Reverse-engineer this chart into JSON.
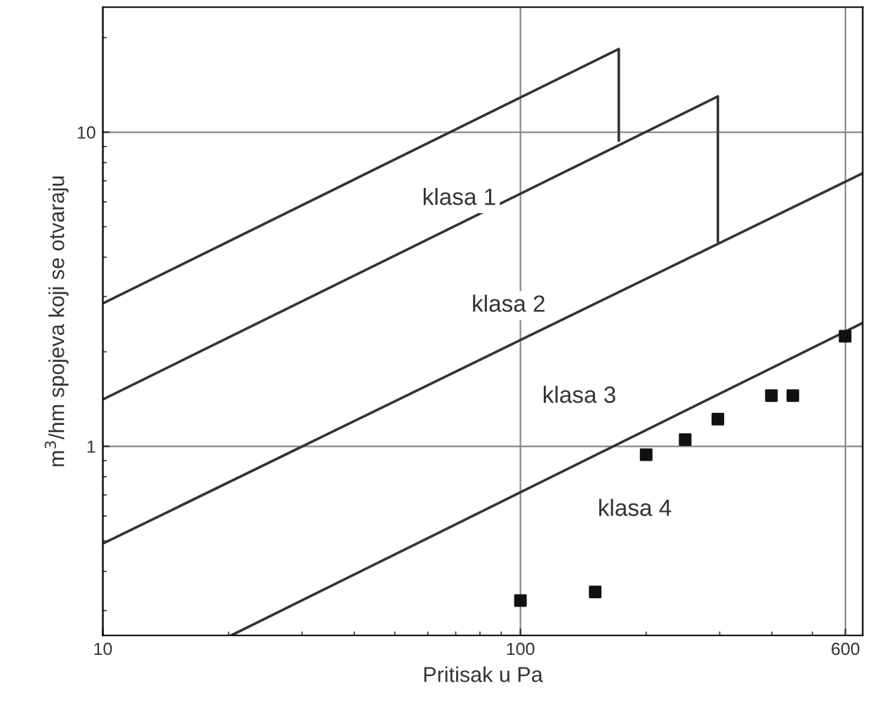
{
  "chart_data": {
    "type": "line",
    "xlabel": "Pritisak u Pa",
    "ylabel": "m$^{3}$/hm spojeva koji se otvaraju",
    "log": "xy",
    "xlim": [
      10,
      660
    ],
    "ylim": [
      0.25,
      25
    ],
    "xticks": [
      10,
      100,
      600
    ],
    "yticks": [
      1,
      10
    ],
    "grid": true,
    "legend": false,
    "series": [
      {
        "color": "#333333",
        "marker": "none",
        "x": [
          10,
          172,
          172
        ],
        "values": [
          2.85,
          18.4,
          9.4
        ]
      },
      {
        "color": "#333333",
        "marker": "none",
        "x": [
          10,
          297,
          297
        ],
        "values": [
          1.41,
          13.0,
          4.5
        ]
      },
      {
        "color": "#333333",
        "marker": "none",
        "x": [
          10,
          660
        ],
        "values": [
          0.49,
          7.4
        ]
      },
      {
        "color": "#333333",
        "marker": "none",
        "x": [
          20.3,
          660
        ],
        "values": [
          0.25,
          2.47
        ]
      },
      {
        "type": "scatter",
        "color": "#111111",
        "marker": "square",
        "x": [
          100,
          151,
          200,
          248,
          297,
          399,
          449,
          599
        ],
        "values": [
          0.323,
          0.344,
          0.94,
          1.05,
          1.22,
          1.45,
          1.45,
          2.24
        ]
      }
    ],
    "annotations": [
      "klasa 1",
      "klasa 2",
      "klasa 3",
      "klasa 4"
    ]
  }
}
